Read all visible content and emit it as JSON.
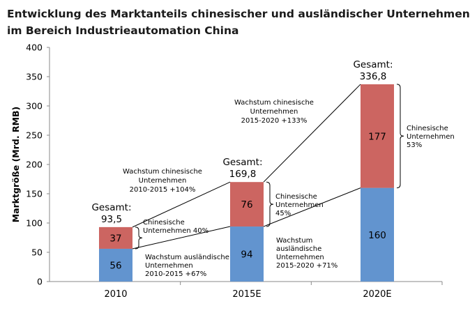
{
  "title": {
    "line1": "Entwicklung des Marktanteils chinesischer und ausländischer Unternehmen",
    "line2": "im Bereich Industrieautomation China"
  },
  "colors": {
    "chinese": "#cc6561",
    "foreign": "#6294cf"
  },
  "chart_data": {
    "type": "bar",
    "stacked": true,
    "title": "Entwicklung des Marktanteils chinesischer und ausländischer Unternehmen im Bereich Industrieautomation China",
    "xlabel": "",
    "ylabel": "Marktgröße (Mrd. RMB)",
    "ylim": [
      0,
      400
    ],
    "yticks": [
      "0",
      "50",
      "100",
      "150",
      "200",
      "250",
      "300",
      "350",
      "400"
    ],
    "categories": [
      "2010",
      "2015E",
      "2020E"
    ],
    "series": [
      {
        "name": "Ausländische Unternehmen",
        "values": [
          56,
          94,
          160
        ],
        "labels": [
          "56",
          "94",
          "160"
        ]
      },
      {
        "name": "Chinesische Unternehmen",
        "values": [
          37,
          76,
          177
        ],
        "labels": [
          "37",
          "76",
          "177"
        ]
      }
    ],
    "totals": [
      {
        "label": "Gesamt:",
        "value": "93,5"
      },
      {
        "label": "Gesamt:",
        "value": "169,8"
      },
      {
        "label": "Gesamt:",
        "value": "336,8"
      }
    ],
    "share_annotations": [
      {
        "lines": [
          "Chinesische",
          "Unternehmen 40%"
        ]
      },
      {
        "lines": [
          "Chinesische",
          "Unternehmen",
          "45%"
        ]
      },
      {
        "lines": [
          "Chinesische",
          "Unternehmen",
          "53%"
        ]
      }
    ],
    "growth_annotations": [
      {
        "lines": [
          "Wachstum chinesische",
          "Unternehmen",
          "2010-2015    +104%"
        ]
      },
      {
        "lines": [
          "Wachstum ausländische",
          "Unternehmen",
          "2010-2015    +67%"
        ]
      },
      {
        "lines": [
          "Wachstum chinesische",
          "Unternehmen",
          "2015-2020    +133%"
        ]
      },
      {
        "lines": [
          "Wachstum",
          "ausländische",
          "Unternehmen",
          "2015-2020      +71%"
        ]
      }
    ]
  }
}
